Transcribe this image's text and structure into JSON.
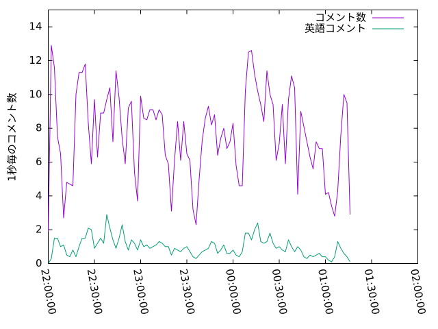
{
  "chart_data": {
    "type": "line",
    "ylabel": "1秒毎のコメント数",
    "xlabel": "",
    "title": "",
    "ylim": [
      0,
      15
    ],
    "xlim": [
      "22:00:00",
      "02:00:00"
    ],
    "x_start": "22:00:00",
    "x_interval_minutes": 2,
    "yticks": [
      0,
      2,
      4,
      6,
      8,
      10,
      12,
      14
    ],
    "xticks": [
      "22:00:00",
      "22:30:00",
      "23:00:00",
      "23:30:00",
      "00:00:00",
      "00:30:00",
      "01:00:00",
      "01:30:00",
      "02:00:00"
    ],
    "grid": false,
    "legend_position": "top-right",
    "series": [
      {
        "name": "コメント数",
        "color": "#9400d3",
        "values": [
          1.9,
          12.9,
          11.6,
          7.5,
          6.5,
          2.7,
          4.8,
          4.7,
          4.6,
          10.0,
          11.3,
          11.3,
          11.8,
          8.3,
          5.9,
          9.7,
          6.3,
          8.9,
          8.9,
          9.7,
          10.4,
          7.2,
          11.4,
          9.8,
          7.4,
          5.9,
          9.2,
          9.6,
          5.4,
          3.7,
          9.9,
          8.6,
          8.5,
          9.1,
          9.1,
          8.5,
          9.1,
          8.8,
          6.4,
          5.9,
          3.1,
          6.1,
          8.4,
          6.1,
          8.4,
          6.5,
          6.1,
          3.2,
          2.3,
          5.0,
          7.3,
          8.6,
          9.3,
          8.2,
          8.8,
          6.4,
          7.4,
          8.0,
          6.8,
          7.2,
          8.3,
          5.8,
          4.6,
          4.6,
          10.2,
          12.5,
          12.6,
          11.2,
          10.2,
          9.4,
          8.4,
          11.4,
          10.0,
          9.4,
          6.1,
          7.1,
          9.4,
          5.9,
          9.7,
          11.1,
          10.4,
          4.1,
          9.0,
          8.1,
          7.2,
          6.3,
          5.6,
          7.2,
          6.8,
          6.8,
          4.1,
          4.2,
          3.4,
          2.8,
          4.3,
          7.6,
          10.0,
          9.5,
          2.9
        ]
      },
      {
        "name": "英語コメント",
        "color": "#009e73",
        "values": [
          0,
          0.3,
          1.5,
          1.5,
          1.0,
          1.1,
          0.5,
          0.4,
          0.8,
          0.4,
          1.0,
          1.5,
          1.5,
          2.1,
          2.0,
          0.9,
          1.2,
          1.5,
          1.2,
          2.9,
          2.1,
          1.4,
          0.9,
          1.5,
          2.3,
          1.3,
          0.8,
          1.4,
          1.2,
          0.8,
          1.4,
          1.0,
          1.1,
          0.9,
          1.0,
          1.1,
          1.3,
          1.2,
          1.0,
          1.0,
          0.5,
          0.9,
          0.8,
          0.7,
          0.9,
          1.0,
          0.7,
          0.4,
          0.3,
          0.5,
          0.7,
          0.8,
          0.9,
          1.3,
          1.2,
          0.6,
          0.8,
          1.1,
          0.6,
          0.6,
          0.8,
          0.5,
          0.4,
          0.7,
          1.8,
          1.8,
          1.4,
          2.0,
          2.4,
          1.3,
          1.2,
          1.3,
          1.8,
          1.2,
          0.9,
          1.0,
          0.8,
          0.7,
          1.4,
          1.0,
          0.7,
          1.0,
          0.8,
          0.4,
          0.3,
          0.5,
          0.4,
          0.5,
          0.6,
          0.4,
          0.4,
          0.2,
          0.1,
          0.4,
          1.3,
          0.9,
          0.6,
          0.4,
          0.1
        ]
      }
    ]
  }
}
